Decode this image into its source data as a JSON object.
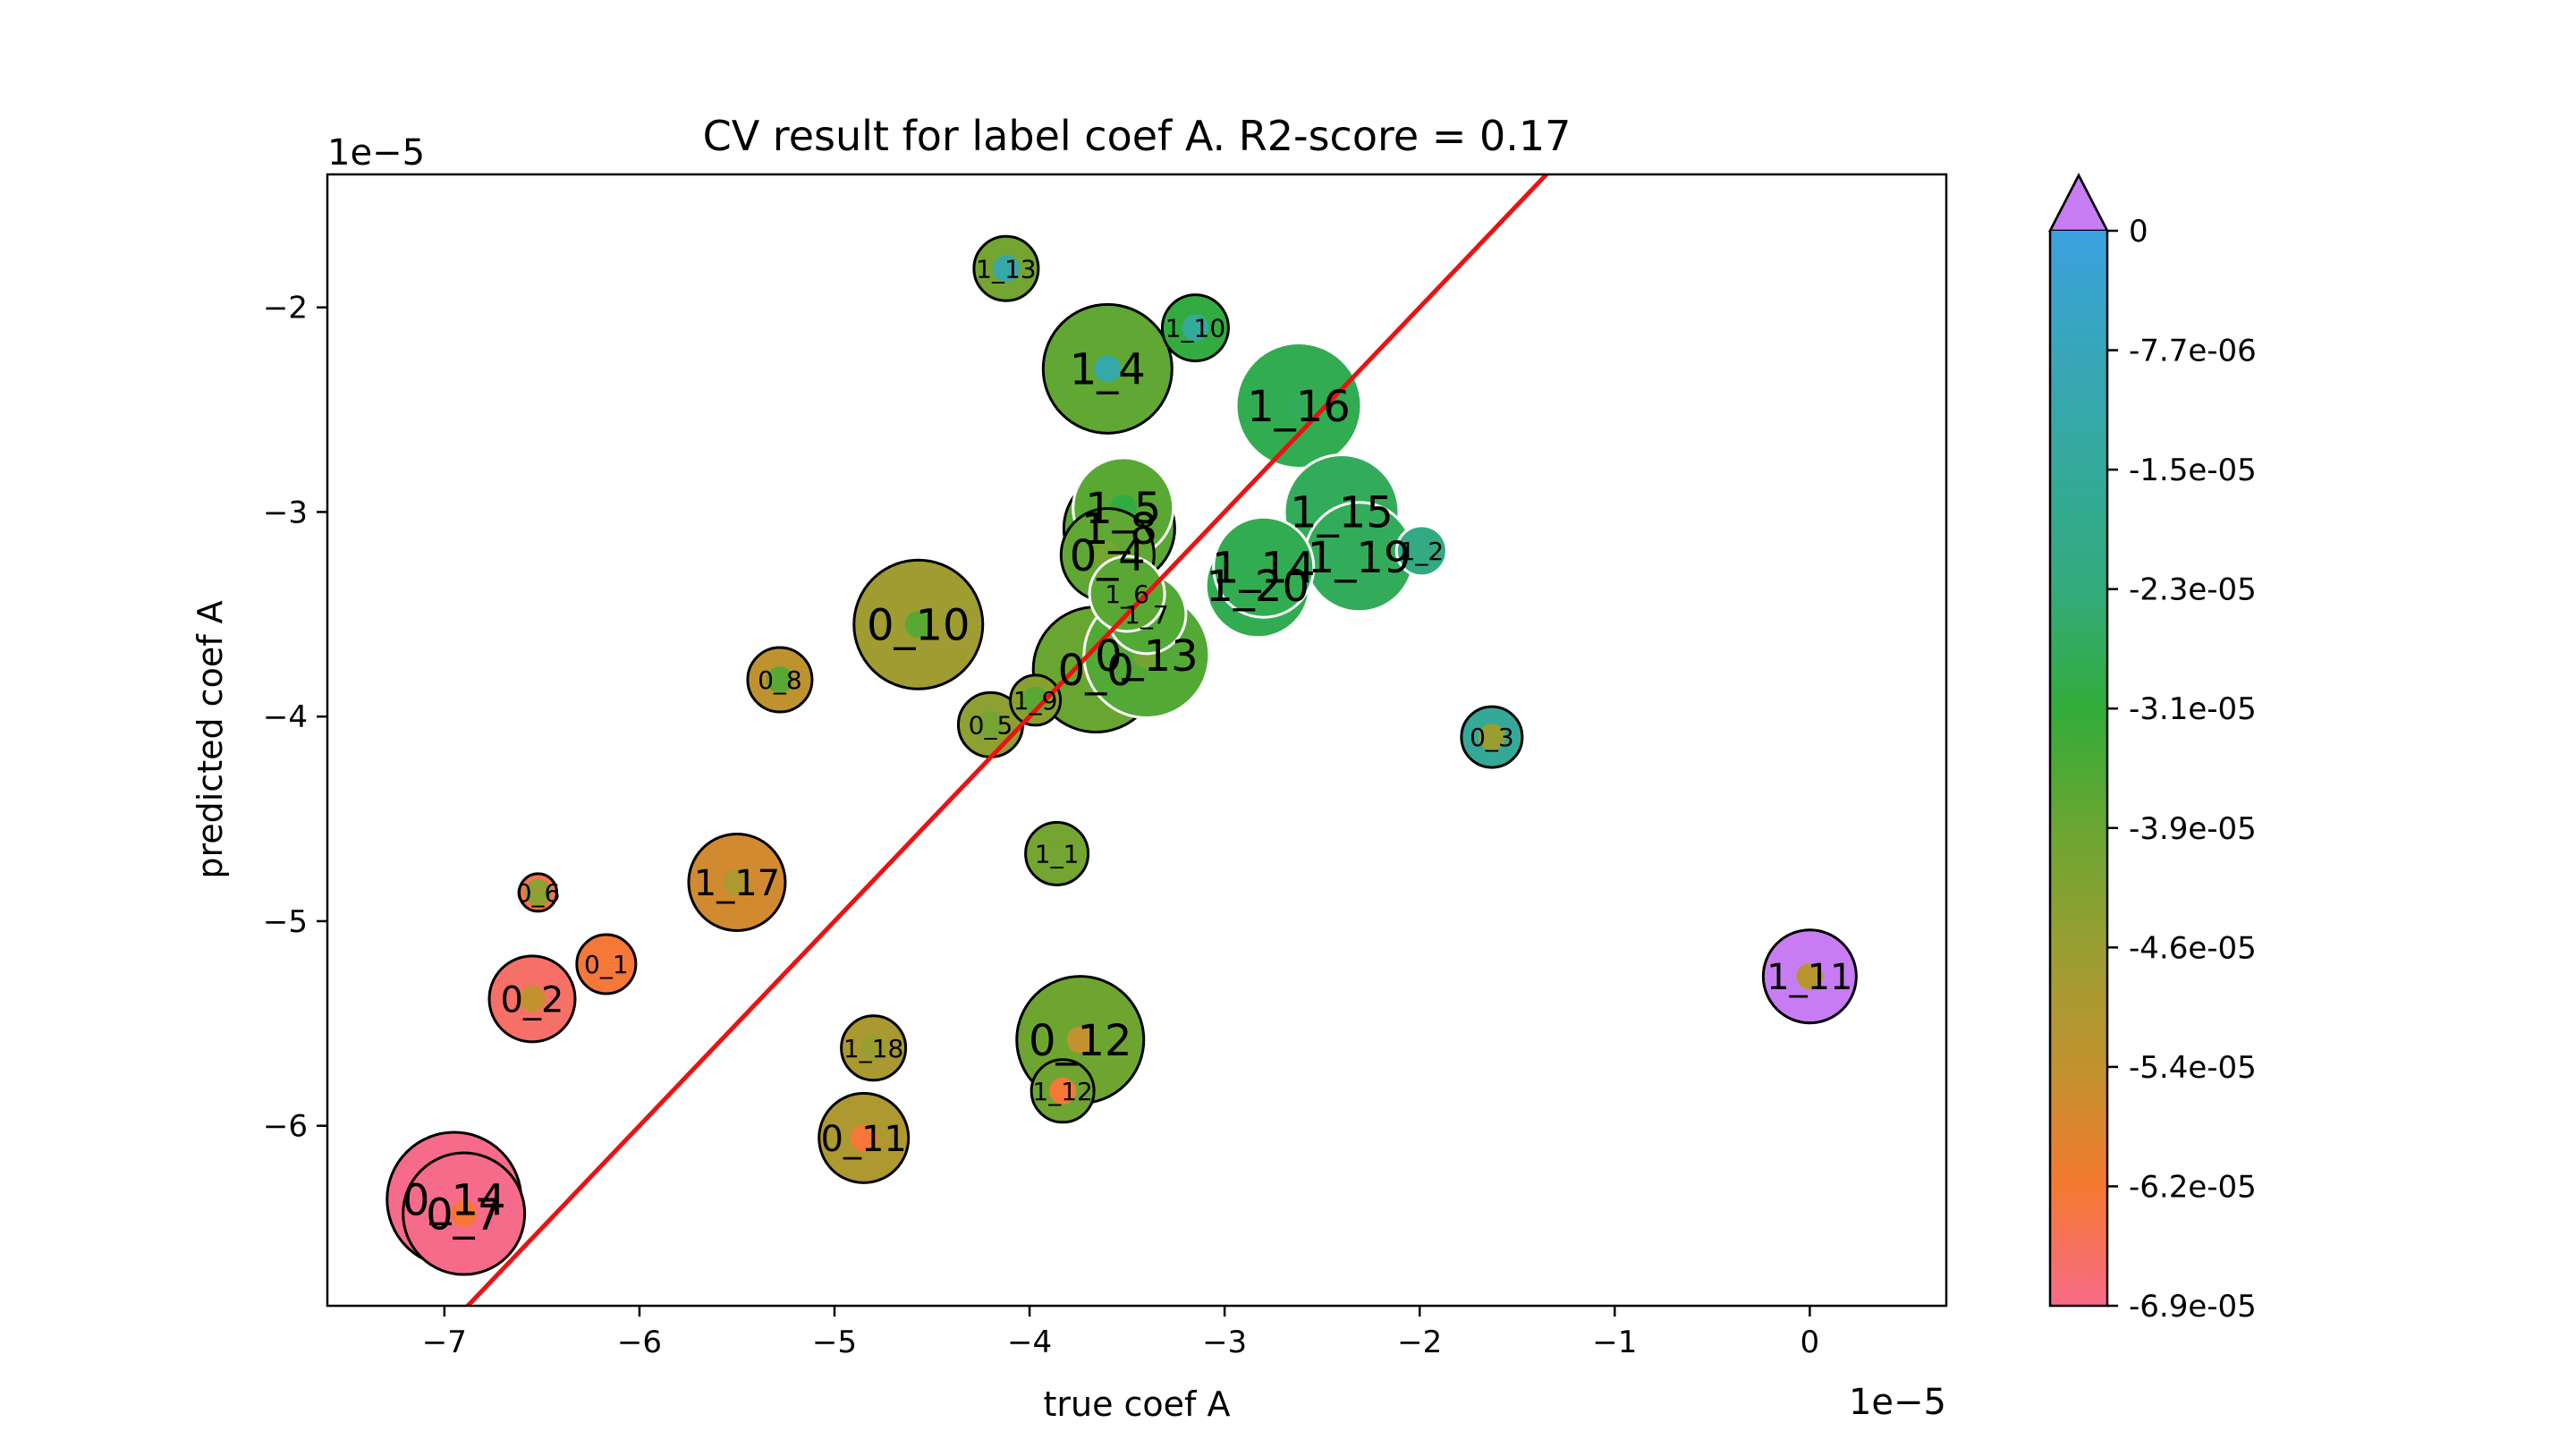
{
  "chart_data": {
    "type": "scatter",
    "title": "CV result for label coef A. R2-score = 0.17",
    "xlabel": "true coef A",
    "ylabel": "predicted coef A",
    "x_offset_label": "1e−5",
    "y_offset_label": "1e−5",
    "xlim": [
      -7.6,
      0.7
    ],
    "ylim": [
      -6.88,
      -1.35
    ],
    "x_ticks": [
      {
        "value": -7,
        "label": "−7"
      },
      {
        "value": -6,
        "label": "−6"
      },
      {
        "value": -5,
        "label": "−5"
      },
      {
        "value": -4,
        "label": "−4"
      },
      {
        "value": -3,
        "label": "−3"
      },
      {
        "value": -2,
        "label": "−2"
      },
      {
        "value": -1,
        "label": "−1"
      },
      {
        "value": 0,
        "label": "0"
      }
    ],
    "y_ticks": [
      {
        "value": -2,
        "label": "−2"
      },
      {
        "value": -3,
        "label": "−3"
      },
      {
        "value": -4,
        "label": "−4"
      },
      {
        "value": -5,
        "label": "−5"
      },
      {
        "value": -6,
        "label": "−6"
      }
    ],
    "grid": false,
    "identity_line": {
      "color": "#ee1111",
      "from": [
        -7.6,
        -7.6
      ],
      "to": [
        0.7,
        0.7
      ]
    },
    "colorbar": {
      "extend": "max",
      "vmin": -6.9e-05,
      "vmax": 0,
      "tick_labels": [
        "0",
        "-7.7e-06",
        "-1.5e-05",
        "-2.3e-05",
        "-3.1e-05",
        "-3.9e-05",
        "-4.6e-05",
        "-5.4e-05",
        "-6.2e-05",
        "-6.9e-05"
      ],
      "extend_color": "#c77cf3",
      "colors": [
        "#f76b8a",
        "#f57930",
        "#c1922f",
        "#9a9e31",
        "#6aa631",
        "#32ac3a",
        "#33ab7c",
        "#35a99b",
        "#38a6b9",
        "#3aa1e0"
      ]
    },
    "points": [
      {
        "label": "0_14",
        "x": -6.95,
        "y": -6.36,
        "c": -0.69
      },
      {
        "label": "0_7",
        "x": -6.9,
        "y": -6.43,
        "c": -0.69
      },
      {
        "label": "0_2",
        "x": -6.55,
        "y": -5.38,
        "c": -0.66
      },
      {
        "label": "0_6",
        "x": -6.52,
        "y": -4.86,
        "c": -0.64
      },
      {
        "label": "0_1",
        "x": -6.17,
        "y": -5.21,
        "c": -0.62
      },
      {
        "label": "1_17",
        "x": -5.5,
        "y": -4.81,
        "c": -0.56
      },
      {
        "label": "0_8",
        "x": -5.28,
        "y": -3.82,
        "c": -0.53
      },
      {
        "label": "1_18",
        "x": -4.8,
        "y": -5.62,
        "c": -0.49
      },
      {
        "label": "0_11",
        "x": -4.85,
        "y": -6.06,
        "c": -0.5
      },
      {
        "label": "0_10",
        "x": -4.57,
        "y": -3.55,
        "c": -0.47
      },
      {
        "label": "0_5",
        "x": -4.2,
        "y": -4.04,
        "c": -0.44
      },
      {
        "label": "1_9",
        "x": -3.97,
        "y": -3.92,
        "c": -0.43
      },
      {
        "label": "1_13",
        "x": -4.12,
        "y": -1.81,
        "c": -0.4
      },
      {
        "label": "1_1",
        "x": -3.86,
        "y": -4.67,
        "c": -0.4
      },
      {
        "label": "0_12",
        "x": -3.74,
        "y": -5.58,
        "c": -0.39
      },
      {
        "label": "1_12",
        "x": -3.83,
        "y": -5.83,
        "c": -0.39
      },
      {
        "label": "0_0",
        "x": -3.66,
        "y": -3.77,
        "c": -0.38
      },
      {
        "label": "1_4",
        "x": -3.6,
        "y": -2.3,
        "c": -0.37
      },
      {
        "label": "0_4",
        "x": -3.6,
        "y": -3.21,
        "c": -0.37
      },
      {
        "label": "1_8",
        "x": -3.54,
        "y": -3.08,
        "c": -0.36
      },
      {
        "label": "1_5",
        "x": -3.52,
        "y": -2.98,
        "c": -0.36
      },
      {
        "label": "1_6",
        "x": -3.5,
        "y": -3.4,
        "c": -0.36
      },
      {
        "label": "1_7",
        "x": -3.4,
        "y": -3.5,
        "c": -0.35
      },
      {
        "label": "0_13",
        "x": -3.4,
        "y": -3.7,
        "c": -0.35
      },
      {
        "label": "1_15",
        "x": -2.4,
        "y": -3.0,
        "c": -0.27
      },
      {
        "label": "1_19",
        "x": -2.31,
        "y": -3.22,
        "c": -0.27
      },
      {
        "label": "1_16",
        "x": -2.62,
        "y": -2.48,
        "c": -0.28
      },
      {
        "label": "1_14",
        "x": -2.8,
        "y": -3.27,
        "c": -0.28
      },
      {
        "label": "1_20",
        "x": -2.83,
        "y": -3.36,
        "c": -0.28
      },
      {
        "label": "1_10",
        "x": -3.15,
        "y": -2.1,
        "c": -0.3
      },
      {
        "label": "1_2",
        "x": -1.99,
        "y": -3.19,
        "c": -0.21
      },
      {
        "label": "0_3",
        "x": -1.63,
        "y": -4.1,
        "c": -0.16
      },
      {
        "label": "1_11",
        "x": 0.0,
        "y": -5.27,
        "c": 0.0
      }
    ]
  }
}
